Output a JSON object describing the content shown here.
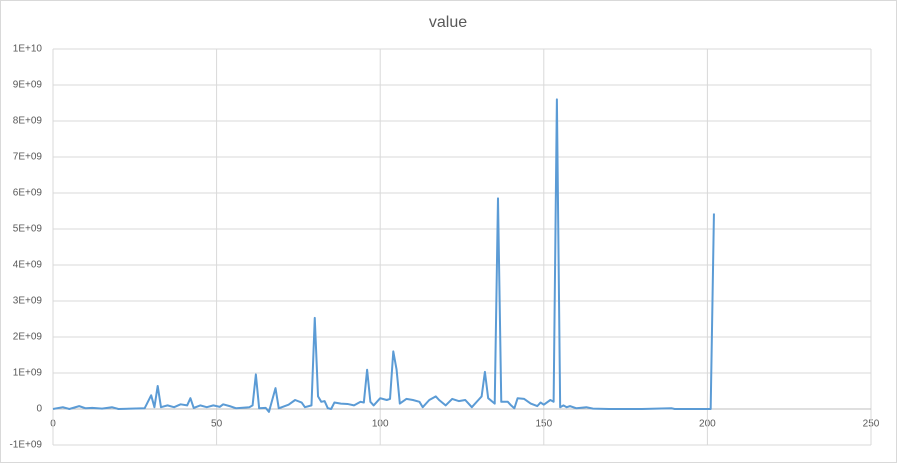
{
  "chart_data": {
    "type": "line",
    "title": "value",
    "x": [
      0,
      3,
      5,
      8,
      10,
      12,
      15,
      18,
      20,
      28,
      30,
      31,
      32,
      33,
      35,
      37,
      39,
      41,
      42,
      43,
      45,
      47,
      49,
      51,
      52,
      54,
      56,
      60,
      61,
      62,
      63,
      65,
      66,
      68,
      69,
      72,
      74,
      76,
      77,
      79,
      80,
      81,
      82,
      83,
      84,
      85,
      86,
      88,
      90,
      92,
      94,
      95,
      96,
      97,
      98,
      100,
      102,
      103,
      104,
      105,
      106,
      108,
      110,
      112,
      113,
      115,
      117,
      118,
      120,
      122,
      124,
      126,
      127,
      128,
      130,
      131,
      132,
      133,
      135,
      136,
      137,
      139,
      140,
      141,
      142,
      144,
      146,
      148,
      149,
      150,
      152,
      153,
      154,
      155,
      156,
      157,
      158,
      160,
      163,
      165,
      170,
      180,
      189,
      190,
      201,
      202
    ],
    "values": [
      0,
      50000000,
      0,
      80000000,
      20000000,
      30000000,
      10000000,
      50000000,
      0,
      20000000,
      380000000,
      50000000,
      640000000,
      50000000,
      100000000,
      50000000,
      130000000,
      100000000,
      300000000,
      30000000,
      100000000,
      50000000,
      100000000,
      60000000,
      130000000,
      80000000,
      20000000,
      50000000,
      100000000,
      960000000,
      20000000,
      30000000,
      -80000000,
      580000000,
      20000000,
      120000000,
      250000000,
      180000000,
      50000000,
      100000000,
      2530000000,
      350000000,
      200000000,
      220000000,
      20000000,
      0,
      180000000,
      150000000,
      140000000,
      100000000,
      200000000,
      180000000,
      1090000000,
      200000000,
      100000000,
      300000000,
      250000000,
      280000000,
      1600000000,
      1100000000,
      150000000,
      280000000,
      250000000,
      200000000,
      50000000,
      250000000,
      350000000,
      250000000,
      100000000,
      280000000,
      220000000,
      250000000,
      150000000,
      50000000,
      250000000,
      350000000,
      1030000000,
      300000000,
      150000000,
      5850000000,
      200000000,
      200000000,
      100000000,
      20000000,
      300000000,
      280000000,
      150000000,
      80000000,
      180000000,
      120000000,
      250000000,
      200000000,
      8600000000,
      50000000,
      100000000,
      50000000,
      80000000,
      20000000,
      50000000,
      10000000,
      0,
      0,
      20000000,
      0,
      0,
      5430000000
    ],
    "color": "#5b9bd5",
    "xlim": [
      0,
      250
    ],
    "xticks": [
      0,
      50,
      100,
      150,
      200,
      250
    ],
    "ylim": [
      -1000000000,
      10000000000
    ],
    "yticks": [
      {
        "value": -1000000000,
        "label": "-1E+09"
      },
      0,
      {
        "value": 1000000000,
        "label": "1E+09"
      },
      {
        "value": 2000000000,
        "label": "2E+09"
      },
      {
        "value": 3000000000,
        "label": "3E+09"
      },
      {
        "value": 4000000000,
        "label": "4E+09"
      },
      {
        "value": 5000000000,
        "label": "5E+09"
      },
      {
        "value": 6000000000,
        "label": "6E+09"
      },
      {
        "value": 7000000000,
        "label": "7E+09"
      },
      {
        "value": 8000000000,
        "label": "8E+09"
      },
      {
        "value": 9000000000,
        "label": "9E+09"
      },
      {
        "value": 10000000000,
        "label": "1E+10"
      }
    ],
    "grid": true
  }
}
